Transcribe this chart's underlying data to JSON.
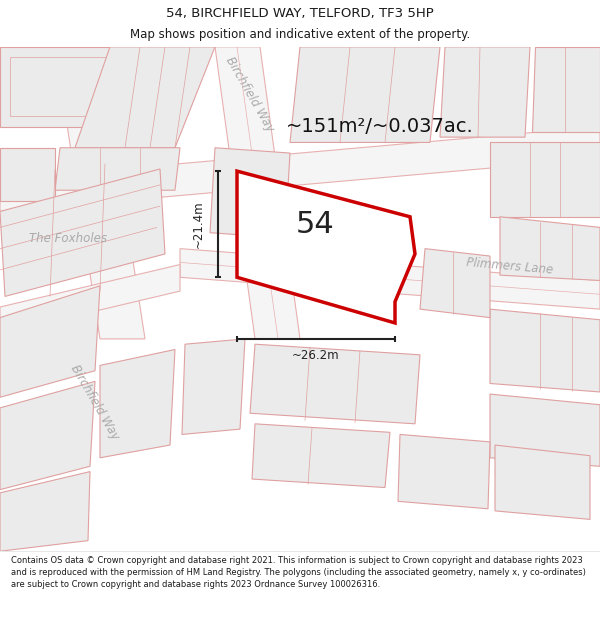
{
  "title_line1": "54, BIRCHFIELD WAY, TELFORD, TF3 5HP",
  "title_line2": "Map shows position and indicative extent of the property.",
  "area_text": "~151m²/~0.037ac.",
  "label_54": "54",
  "label_width": "~26.2m",
  "label_height": "~21.4m",
  "label_foxholes": "The Foxholes",
  "label_birchfield_way_top": "Birchfield Way",
  "label_birchfield_way_bottom": "Birchfield Way",
  "label_plimmers": "Plimmers Lane",
  "footer": "Contains OS data © Crown copyright and database right 2021. This information is subject to Crown copyright and database rights 2023 and is reproduced with the permission of HM Land Registry. The polygons (including the associated geometry, namely x, y co-ordinates) are subject to Crown copyright and database rights 2023 Ordnance Survey 100026316.",
  "map_bg": "#ffffff",
  "road_fill": "#f5f5f5",
  "road_line_color": "#e8b0b0",
  "bld_fill": "#ebebeb",
  "bld_border": "#e0a0a0",
  "highlight_color": "#cc0000",
  "highlight_fill": "#ffffff",
  "street_label_color": "#aaaaaa",
  "dim_color": "#222222",
  "title_color": "#1a1a1a",
  "footer_color": "#1a1a1a"
}
